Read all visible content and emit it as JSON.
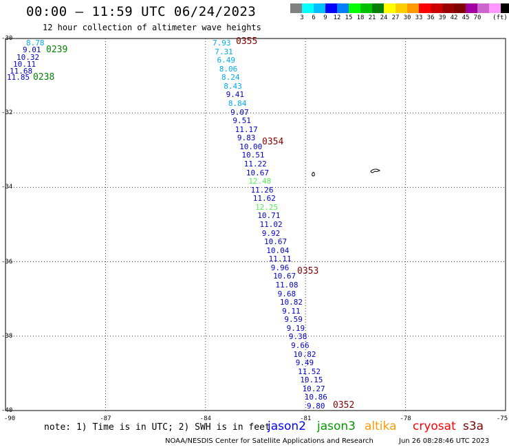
{
  "title": "00:00 – 11:59 UTC 06/24/2023",
  "subtitle": "12 hour collection of altimeter wave heights",
  "color_scale": {
    "colors": [
      "#808080",
      "#00ffff",
      "#00bfff",
      "#0000ff",
      "#0080ff",
      "#00ff00",
      "#00c000",
      "#008000",
      "#ffff00",
      "#ffcc00",
      "#ff9900",
      "#ff0000",
      "#cc0000",
      "#990000",
      "#800000",
      "#a000a0",
      "#cc66cc",
      "#ff99ff",
      "#000000"
    ],
    "labels": [
      "3",
      "6",
      "9",
      "12",
      "15",
      "18",
      "21",
      "24",
      "27",
      "30",
      "33",
      "36",
      "39",
      "42",
      "45",
      "70",
      "(ft)"
    ]
  },
  "axes": {
    "lat_labels": [
      "-30",
      "-32",
      "-34",
      "-36",
      "-38",
      "-40"
    ],
    "lon_labels": [
      "-90",
      "-87",
      "-84",
      "-81",
      "-78",
      "-75"
    ]
  },
  "passes": {
    "upper_left": {
      "values": [
        {
          "v": "8.78",
          "c": "#00aaee"
        },
        {
          "v": "9.01",
          "c": "#0000cc"
        },
        {
          "v": "10.32",
          "c": "#0000cc"
        },
        {
          "v": "10.11",
          "c": "#0000cc"
        },
        {
          "v": "11.68",
          "c": "#0000cc"
        },
        {
          "v": "11.85",
          "c": "#0000cc"
        }
      ],
      "times": [
        "0239",
        "0238"
      ],
      "time_color": "#008000"
    },
    "main": {
      "values": [
        {
          "v": "7.93",
          "c": "#00aaee"
        },
        {
          "v": "7.31",
          "c": "#00aaee"
        },
        {
          "v": "6.49",
          "c": "#00aaee"
        },
        {
          "v": "8.06",
          "c": "#00aaee"
        },
        {
          "v": "8.24",
          "c": "#00aaee"
        },
        {
          "v": "8.43",
          "c": "#00aaee"
        },
        {
          "v": "9.41",
          "c": "#0000cc"
        },
        {
          "v": "8.84",
          "c": "#00aaee"
        },
        {
          "v": "9.07",
          "c": "#0000cc"
        },
        {
          "v": "9.51",
          "c": "#0000cc"
        },
        {
          "v": "11.17",
          "c": "#0000cc"
        },
        {
          "v": "9.83",
          "c": "#0000cc"
        },
        {
          "v": "10.00",
          "c": "#0000cc"
        },
        {
          "v": "10.51",
          "c": "#0000cc"
        },
        {
          "v": "11.22",
          "c": "#0000cc"
        },
        {
          "v": "10.67",
          "c": "#0000cc"
        },
        {
          "v": "12.48",
          "c": "#55ee55"
        },
        {
          "v": "11.26",
          "c": "#0000cc"
        },
        {
          "v": "11.62",
          "c": "#0000cc"
        },
        {
          "v": "12.25",
          "c": "#55ee55"
        },
        {
          "v": "10.71",
          "c": "#0000cc"
        },
        {
          "v": "11.02",
          "c": "#0000cc"
        },
        {
          "v": "9.92",
          "c": "#0000cc"
        },
        {
          "v": "10.67",
          "c": "#0000cc"
        },
        {
          "v": "10.04",
          "c": "#0000cc"
        },
        {
          "v": "11.11",
          "c": "#0000cc"
        },
        {
          "v": "9.96",
          "c": "#0000cc"
        },
        {
          "v": "10.67",
          "c": "#0000cc"
        },
        {
          "v": "11.08",
          "c": "#0000cc"
        },
        {
          "v": "9.68",
          "c": "#0000cc"
        },
        {
          "v": "10.82",
          "c": "#0000cc"
        },
        {
          "v": "9.11",
          "c": "#0000cc"
        },
        {
          "v": "9.59",
          "c": "#0000cc"
        },
        {
          "v": "9.19",
          "c": "#0000cc"
        },
        {
          "v": "9.38",
          "c": "#0000cc"
        },
        {
          "v": "9.66",
          "c": "#0000cc"
        },
        {
          "v": "10.82",
          "c": "#0000cc"
        },
        {
          "v": "9.49",
          "c": "#0000cc"
        },
        {
          "v": "11.52",
          "c": "#0000cc"
        },
        {
          "v": "10.15",
          "c": "#0000cc"
        },
        {
          "v": "10.27",
          "c": "#0000cc"
        },
        {
          "v": "10.86",
          "c": "#0000cc"
        },
        {
          "v": "9.80",
          "c": "#0000cc"
        }
      ],
      "times": [
        "0355",
        "0354",
        "0353",
        "0352"
      ],
      "time_color": "#800000"
    }
  },
  "note": "note: 1) Time is in UTC; 2) SWH is in feet",
  "missions": [
    {
      "name": "jason2",
      "color": "#0000ff"
    },
    {
      "name": "jason3",
      "color": "#009900"
    },
    {
      "name": "altika",
      "color": "#ff9900"
    },
    {
      "name": "cryosat",
      "color": "#ff0000"
    },
    {
      "name": "s3a",
      "color": "#800000"
    }
  ],
  "footer": {
    "credit": "NOAA/NESDIS Center for Satellite Applications and Research",
    "date": "Jun 26 08:28:46 UTC 2023"
  }
}
